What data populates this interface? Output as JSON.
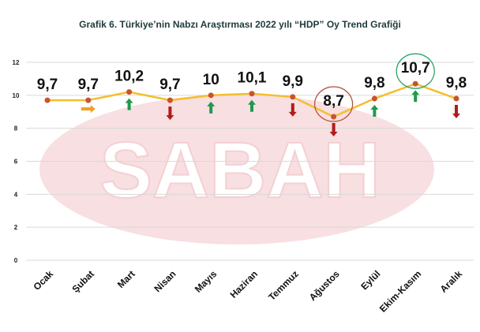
{
  "chart_data": {
    "type": "line",
    "title": "Grafik 6. Türkiye’nin Nabzı Araştırması 2022 yılı “HDP” Oy Trend Grafiği",
    "watermark": "SABAH",
    "categories": [
      "Ocak",
      "Şubat",
      "Mart",
      "Nisan",
      "Mayıs",
      "Haziran",
      "Temmuz",
      "Ağustos",
      "Eylül",
      "Ekim-Kasım",
      "Aralık"
    ],
    "values": [
      9.7,
      9.7,
      10.2,
      9.7,
      10,
      10.1,
      9.9,
      8.7,
      9.8,
      10.7,
      9.8
    ],
    "data_labels": [
      "9,7",
      "9,7",
      "10,2",
      "9,7",
      "10",
      "10,1",
      "9,9",
      "8,7",
      "9,8",
      "10,7",
      "9,8"
    ],
    "trend_arrows": [
      "none",
      "flat",
      "up",
      "down",
      "up",
      "up",
      "down",
      "down",
      "up",
      "up",
      "down"
    ],
    "highlighted": [
      {
        "index": 7,
        "color": "#b5523a"
      },
      {
        "index": 9,
        "color": "#2fa56a"
      }
    ],
    "ylim": [
      0,
      12
    ],
    "yticks": [
      0,
      2,
      4,
      6,
      8,
      10,
      12
    ],
    "grid": true,
    "colors": {
      "line": "#f4bf2c",
      "marker": "#c9532b",
      "up": "#1f9a4e",
      "down": "#b31b1b",
      "flat": "#f0a020",
      "watermark": "#f2c4c8"
    }
  }
}
